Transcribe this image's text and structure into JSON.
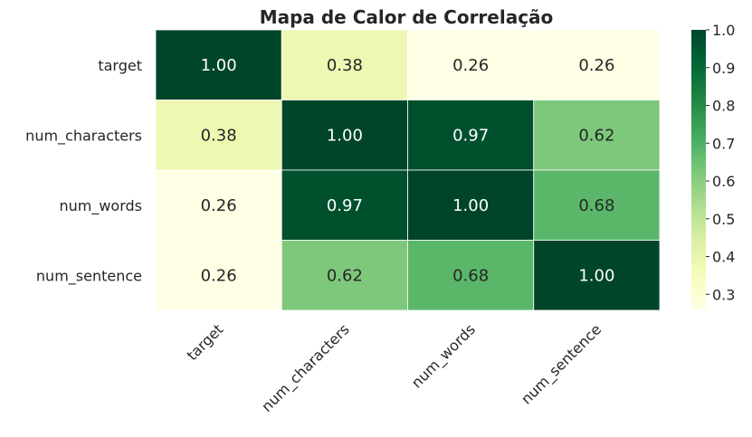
{
  "chart_data": {
    "type": "heatmap",
    "title": "Mapa de Calor de Correlação",
    "rows": [
      "target",
      "num_characters",
      "num_words",
      "num_sentence"
    ],
    "columns": [
      "target",
      "num_characters",
      "num_words",
      "num_sentence"
    ],
    "values": [
      [
        1.0,
        0.38,
        0.26,
        0.26
      ],
      [
        0.38,
        1.0,
        0.97,
        0.62
      ],
      [
        0.26,
        0.97,
        1.0,
        0.68
      ],
      [
        0.26,
        0.62,
        0.68,
        1.0
      ]
    ],
    "value_format": "2 decimals",
    "colormap": "YlGn",
    "colorbar": {
      "range": [
        0.26,
        1.0
      ],
      "ticks": [
        "0.3",
        "0.4",
        "0.5",
        "0.6",
        "0.7",
        "0.8",
        "0.9",
        "1.0"
      ],
      "placement": "right"
    },
    "annotate": true,
    "gridlines": false
  }
}
